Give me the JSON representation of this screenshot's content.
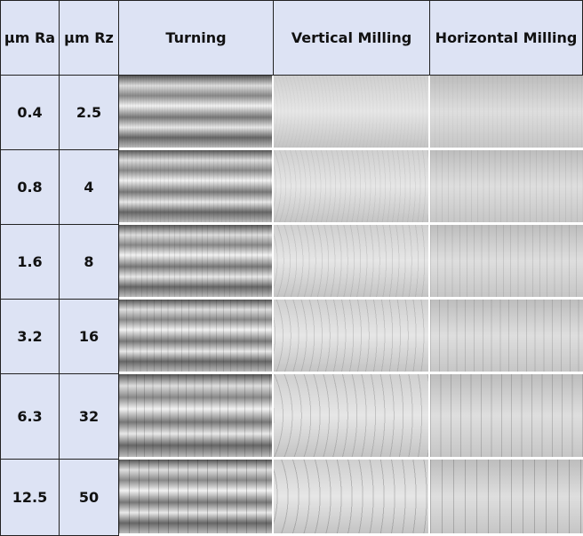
{
  "table": {
    "header": [
      "µm Ra",
      "µm Rz",
      "Turning",
      "Vertical Milling",
      "Horizontal Milling"
    ],
    "rows": [
      [
        "0.4",
        "2.5"
      ],
      [
        "0.8",
        "4"
      ],
      [
        "1.6",
        "8"
      ],
      [
        "3.2",
        "16"
      ],
      [
        "6.3",
        "32"
      ],
      [
        "12.5",
        "50"
      ]
    ]
  }
}
